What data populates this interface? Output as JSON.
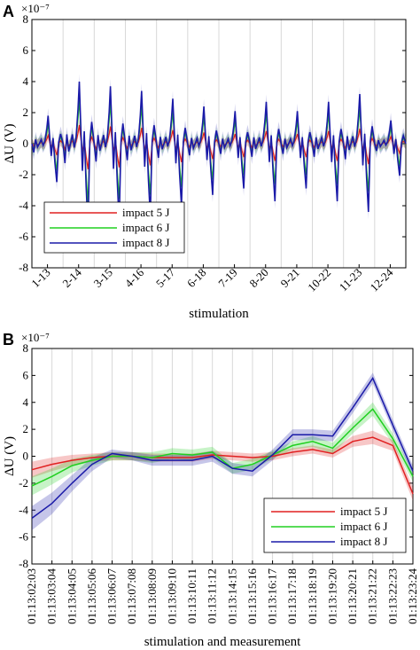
{
  "chart_data": [
    {
      "type": "line",
      "panel": "A",
      "y_exponent": "×10⁻⁷",
      "xlabel": "stimulation",
      "ylabel": "ΔU (V)",
      "ylim": [
        -8,
        8
      ],
      "yticks": [
        -8,
        -6,
        -4,
        -2,
        0,
        2,
        4,
        6,
        8
      ],
      "grid": "vertical",
      "legend_position": "bottom-left",
      "categories": [
        "1-13",
        "2-14",
        "3-15",
        "4-16",
        "5-17",
        "6-18",
        "7-19",
        "8-20",
        "9-21",
        "10-22",
        "11-23",
        "12-24"
      ],
      "segment_peaks": [
        1.8,
        4.0,
        3.7,
        3.4,
        2.9,
        2.4,
        2.1,
        2.7,
        2.1,
        2.7,
        3.2,
        1.5
      ],
      "series": [
        {
          "name": "impact 5 J",
          "color": "#e02020",
          "scale": 0.3,
          "band": 0.1
        },
        {
          "name": "impact 6 J",
          "color": "#20d020",
          "scale": 0.7,
          "band": 0.12
        },
        {
          "name": "impact 8 J",
          "color": "#1a1aa8",
          "scale": 1.0,
          "band": 0.14
        }
      ]
    },
    {
      "type": "line",
      "panel": "B",
      "y_exponent": "×10⁻⁷",
      "xlabel": "stimulation and measurement",
      "ylabel": "ΔU (V)",
      "ylim": [
        -8,
        8
      ],
      "yticks": [
        -8,
        -6,
        -4,
        -2,
        0,
        2,
        4,
        6,
        8
      ],
      "grid": "vertical",
      "legend_position": "bottom-right",
      "categories": [
        "01:13:02:03",
        "01:13:03:04",
        "01:13:04:05",
        "01:13:05:06",
        "01:13:06:07",
        "01:13:07:08",
        "01:13:08:09",
        "01:13:09:10",
        "01:13:10:11",
        "01:13:11:12",
        "01:13:14:15",
        "01:13:15:16",
        "01:13:16:17",
        "01:13:17:18",
        "01:13:18:19",
        "01:13:19:20",
        "01:13:20:21",
        "01:13:21:22",
        "01:13:22:23",
        "01:13:23:24"
      ],
      "series": [
        {
          "name": "impact 5 J",
          "color": "#e02020",
          "values": [
            -1.0,
            -0.6,
            -0.3,
            -0.1,
            0.0,
            0.0,
            -0.1,
            -0.1,
            -0.1,
            0.1,
            0.0,
            -0.1,
            0.0,
            0.3,
            0.5,
            0.2,
            1.1,
            1.4,
            0.8,
            -2.8
          ],
          "band": [
            0.6,
            0.5,
            0.4,
            0.3,
            0.3,
            0.3,
            0.3,
            0.3,
            0.3,
            0.3,
            0.3,
            0.3,
            0.3,
            0.3,
            0.3,
            0.3,
            0.4,
            0.5,
            0.4,
            0.5
          ]
        },
        {
          "name": "impact 6 J",
          "color": "#20d020",
          "values": [
            -2.2,
            -1.5,
            -0.7,
            -0.3,
            0.0,
            0.0,
            -0.1,
            0.2,
            0.1,
            0.3,
            -0.9,
            -0.6,
            0.1,
            0.8,
            1.1,
            0.6,
            2.1,
            3.5,
            1.3,
            -1.5
          ],
          "band": [
            0.7,
            0.6,
            0.5,
            0.4,
            0.3,
            0.3,
            0.4,
            0.4,
            0.4,
            0.4,
            0.4,
            0.4,
            0.3,
            0.3,
            0.4,
            0.4,
            0.4,
            0.5,
            0.4,
            0.4
          ]
        },
        {
          "name": "impact 8 J",
          "color": "#1a1aa8",
          "values": [
            -4.6,
            -3.5,
            -2.0,
            -0.6,
            0.2,
            0.0,
            -0.3,
            -0.3,
            -0.3,
            0.0,
            -0.9,
            -1.1,
            0.1,
            1.6,
            1.6,
            1.5,
            3.6,
            5.8,
            2.3,
            -1.1
          ],
          "band": [
            0.9,
            0.8,
            0.6,
            0.5,
            0.3,
            0.3,
            0.4,
            0.4,
            0.4,
            0.4,
            0.4,
            0.4,
            0.4,
            0.4,
            0.4,
            0.4,
            0.4,
            0.4,
            0.4,
            0.4
          ]
        }
      ]
    }
  ]
}
